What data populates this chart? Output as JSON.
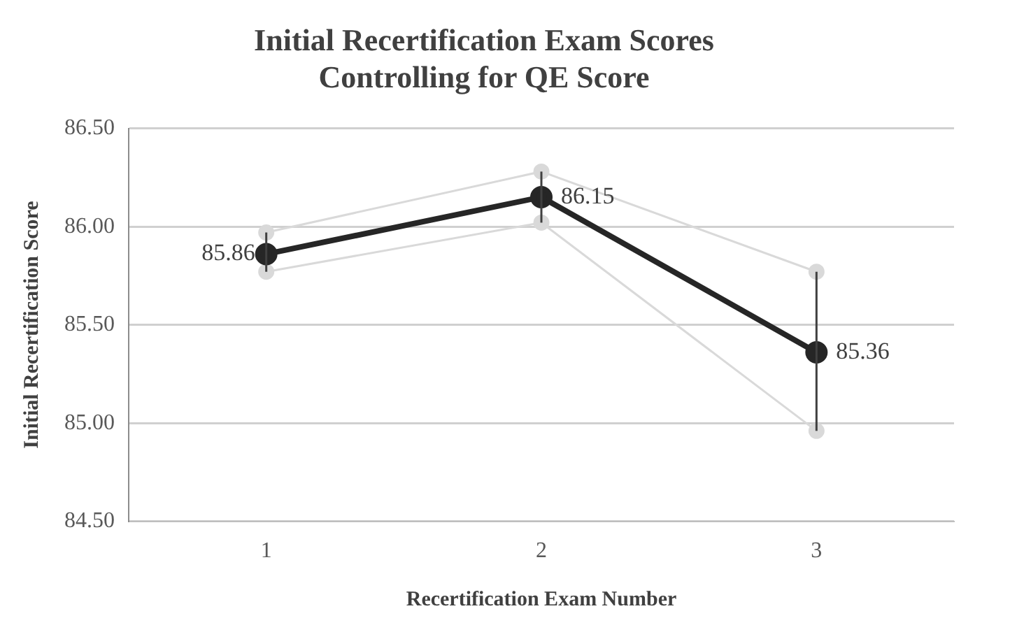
{
  "chart_data": {
    "type": "line",
    "title": "Initial Recertification Exam Scores Controlling for QE Score",
    "xlabel": "Recertification Exam Number",
    "ylabel": "Initial Recertification Score",
    "categories": [
      "1",
      "2",
      "3"
    ],
    "series": [
      {
        "color": "#d9d9d9",
        "values": [
          85.97,
          86.28,
          85.77
        ]
      },
      {
        "color": "#d9d9d9",
        "values": [
          85.77,
          86.02,
          84.96
        ]
      },
      {
        "color": "#262626",
        "values": [
          85.86,
          86.15,
          85.36
        ],
        "value_labels": [
          "85.86",
          "86.15",
          "85.36"
        ],
        "errors": [
          [
            85.77,
            85.97
          ],
          [
            86.02,
            86.28
          ],
          [
            84.96,
            85.77
          ]
        ]
      }
    ],
    "ylim": [
      84.5,
      86.5
    ],
    "yticks": [
      {
        "value": 84.5,
        "label": "84.50"
      },
      {
        "value": 85,
        "label": "85.00"
      },
      {
        "value": 85.5,
        "label": "85.50"
      },
      {
        "value": 86,
        "label": "86.00"
      },
      {
        "value": 86.5,
        "label": "86.50"
      }
    ],
    "grid": "y",
    "legend": false,
    "marker": "circle",
    "line_style": "solid"
  }
}
